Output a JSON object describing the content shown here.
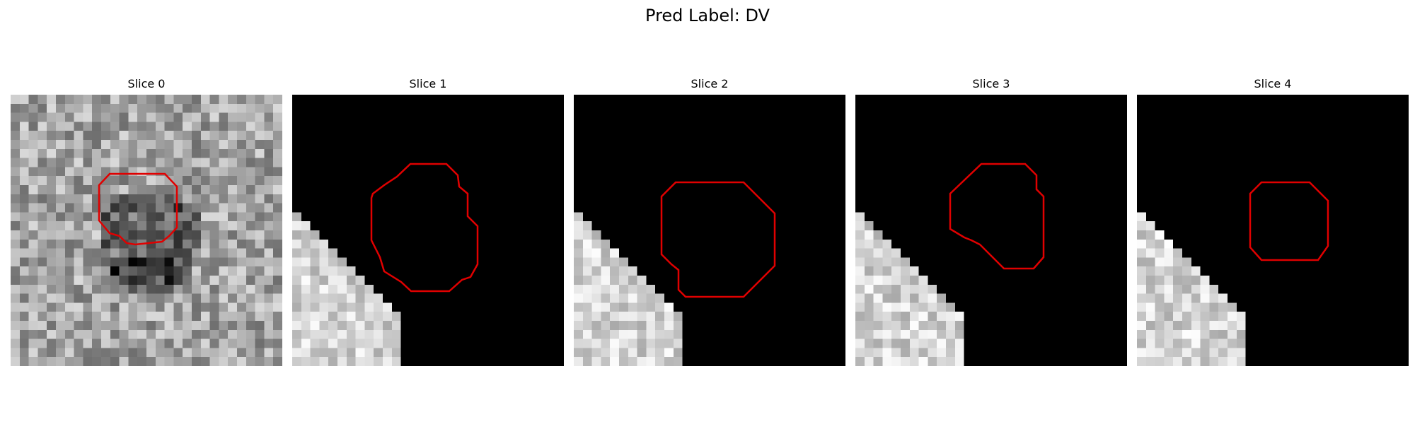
{
  "figure": {
    "suptitle": "Pred Label: DV"
  },
  "slices": [
    {
      "title": "Slice 0",
      "background": "noisy-gray-texture"
    },
    {
      "title": "Slice 1",
      "background": "black-with-bright-bottom-left-region"
    },
    {
      "title": "Slice 2",
      "background": "black-with-bright-bottom-left-region"
    },
    {
      "title": "Slice 3",
      "background": "black-with-bright-bottom-left-region"
    },
    {
      "title": "Slice 4",
      "background": "black-with-bright-bottom-left-region"
    }
  ],
  "contour_color": "#e00000"
}
